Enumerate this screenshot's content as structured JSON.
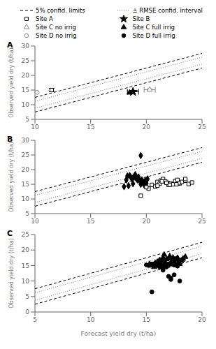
{
  "chart_data": [
    {
      "type": "scatter",
      "annotations": [
        "A"
      ],
      "ylabel": "Observed yield dry (t/ha)",
      "legend": "top",
      "grid": false,
      "xlim": [
        10,
        25
      ],
      "ylim": [
        5,
        30
      ],
      "xticks": [
        10,
        15,
        20,
        25
      ],
      "yticks": [
        5,
        10,
        15,
        20,
        25,
        30
      ],
      "series": [
        {
          "name": "5% confid. limits",
          "type": "line",
          "line_style": "dashed",
          "color": "black",
          "x": [
            10,
            25
          ],
          "values": [
            12.5,
            27.5
          ]
        },
        {
          "type": "line",
          "line_style": "dashed",
          "color": "black",
          "x": [
            10,
            25
          ],
          "values": [
            7.5,
            22.5
          ]
        },
        {
          "name": "± RMSE confid. interval",
          "type": "line",
          "line_style": "dotted",
          "color": "gray",
          "x": [
            10,
            25
          ],
          "values": [
            11.2,
            26.2
          ]
        },
        {
          "type": "line",
          "line_style": "dotted",
          "color": "gray",
          "x": [
            10,
            25
          ],
          "values": [
            8.8,
            23.8
          ]
        },
        {
          "name": "Site A",
          "type": "scatter",
          "marker": "square-open",
          "color": "black",
          "x": [
            11.5
          ],
          "values": [
            15.0
          ],
          "yerr": [
            0.6
          ]
        },
        {
          "name": "Site B",
          "type": "scatter",
          "marker": "star",
          "color": "black",
          "x": [
            18.8
          ],
          "values": [
            14.4
          ],
          "xerr": [
            0.5
          ],
          "yerr": [
            0.5
          ]
        },
        {
          "name": "Site C no irrig",
          "type": "scatter",
          "marker": "triangle-open",
          "color": "#888888",
          "x": [
            20.3
          ],
          "values": [
            15.1
          ],
          "xerr": [
            0.5
          ],
          "yerr": [
            0.3
          ]
        },
        {
          "name": "Site C full irrig",
          "type": "scatter",
          "marker": "triangle",
          "color": "black",
          "x": [
            18.5
          ],
          "values": [
            14.1
          ]
        },
        {
          "name": "Site D no irrig",
          "type": "scatter",
          "marker": "circle-open",
          "color": "#888888",
          "x": [
            10.2
          ],
          "values": [
            14.2
          ]
        },
        {
          "name": "Site D full irrig",
          "type": "scatter",
          "marker": "circle",
          "color": "black",
          "x": [],
          "values": []
        }
      ]
    },
    {
      "type": "scatter",
      "annotations": [
        "B"
      ],
      "ylabel": "Observed yield dry (t/ha)",
      "grid": false,
      "xlim": [
        10,
        25
      ],
      "ylim": [
        5,
        30
      ],
      "xticks": [
        10,
        15,
        20,
        25
      ],
      "yticks": [
        5,
        10,
        15,
        20,
        25,
        30
      ],
      "series": [
        {
          "type": "line",
          "line_style": "dashed",
          "color": "black",
          "x": [
            10,
            25
          ],
          "values": [
            12.5,
            27.5
          ]
        },
        {
          "type": "line",
          "line_style": "dashed",
          "color": "black",
          "x": [
            10,
            25
          ],
          "values": [
            7.5,
            22.5
          ]
        },
        {
          "type": "line",
          "line_style": "dotted",
          "color": "gray",
          "x": [
            10,
            25
          ],
          "values": [
            11.2,
            26.2
          ]
        },
        {
          "type": "line",
          "line_style": "dotted",
          "color": "gray",
          "x": [
            10,
            25
          ],
          "values": [
            8.8,
            23.8
          ]
        },
        {
          "type": "scatter",
          "marker": "diamond",
          "color": "black",
          "x": [
            18.0,
            18.2,
            18.3,
            18.5,
            18.6,
            18.7,
            18.8,
            18.9,
            19.0,
            19.1,
            19.2,
            19.3,
            19.4,
            19.5,
            19.6,
            19.7,
            19.8,
            19.9,
            20.0,
            20.1,
            18.4,
            18.8,
            19.2,
            19.5,
            19.8,
            19.5
          ],
          "values": [
            14.2,
            16.5,
            17.8,
            18.0,
            17.5,
            16.8,
            17.2,
            17.5,
            18.3,
            17.0,
            16.8,
            17.5,
            16.2,
            15.8,
            16.5,
            15.5,
            15.8,
            16.2,
            15.3,
            16.8,
            14.5,
            15.2,
            16.5,
            15.0,
            14.8,
            24.8
          ]
        },
        {
          "type": "scatter",
          "marker": "square-open",
          "color": "black",
          "x": [
            19.5,
            20.2,
            20.5,
            20.8,
            21.0,
            21.2,
            21.3,
            21.5,
            21.7,
            21.9,
            22.0,
            22.2,
            22.4,
            22.6,
            22.8,
            23.0,
            23.2,
            23.5,
            23.8,
            24.1,
            21.0,
            21.4,
            22.1,
            22.9,
            23.5,
            20.0,
            21.8,
            22.7
          ],
          "values": [
            11.1,
            13.5,
            14.8,
            14.2,
            15.8,
            15.2,
            16.3,
            16.8,
            16.0,
            15.5,
            14.8,
            15.2,
            15.0,
            16.1,
            16.5,
            15.3,
            15.8,
            16.2,
            15.1,
            15.6,
            14.5,
            16.0,
            14.8,
            15.4,
            16.8,
            14.0,
            15.5,
            15.0
          ]
        }
      ]
    },
    {
      "type": "scatter",
      "annotations": [
        "C"
      ],
      "ylabel": "Observed yield dry (t/ha)",
      "xlabel": "Forecast yield dry (t/ha)",
      "grid": false,
      "xlim": [
        5,
        20
      ],
      "ylim": [
        0,
        25
      ],
      "xticks": [
        5,
        10,
        15,
        20
      ],
      "yticks": [
        0,
        5,
        10,
        15,
        20,
        25
      ],
      "series": [
        {
          "type": "line",
          "line_style": "dashed",
          "color": "black",
          "x": [
            5,
            20
          ],
          "values": [
            7.5,
            22.5
          ]
        },
        {
          "type": "line",
          "line_style": "dashed",
          "color": "black",
          "x": [
            5,
            20
          ],
          "values": [
            2.5,
            17.5
          ]
        },
        {
          "type": "line",
          "line_style": "dotted",
          "color": "gray",
          "x": [
            5,
            20
          ],
          "values": [
            6.2,
            21.2
          ]
        },
        {
          "type": "line",
          "line_style": "dotted",
          "color": "gray",
          "x": [
            5,
            20
          ],
          "values": [
            3.8,
            18.8
          ]
        },
        {
          "type": "scatter",
          "marker": "triangle",
          "color": "black",
          "x": [
            15.3,
            15.5,
            15.7,
            15.8,
            16.0,
            16.1,
            16.2,
            16.4,
            16.5,
            16.6,
            16.7,
            16.8,
            17.0,
            17.1,
            17.2,
            17.3,
            17.4,
            17.5,
            17.6,
            17.7,
            17.8,
            17.9,
            18.0,
            18.1,
            18.2,
            18.3,
            18.5,
            15.5,
            16.3
          ],
          "values": [
            15.5,
            15.0,
            14.5,
            15.8,
            16.2,
            15.5,
            16.8,
            16.5,
            17.5,
            18.5,
            16.0,
            17.0,
            17.2,
            18.0,
            15.8,
            16.5,
            17.5,
            16.2,
            17.0,
            16.8,
            17.5,
            16.0,
            15.5,
            16.5,
            16.8,
            17.2,
            17.8,
            15.0,
            15.3
          ]
        },
        {
          "type": "scatter",
          "marker": "circle",
          "color": "black",
          "x": [
            15.0,
            15.2,
            15.5,
            15.8,
            16.0,
            16.2,
            16.5,
            16.5,
            16.8,
            17.0,
            17.0,
            17.2,
            17.3,
            17.5,
            17.5,
            17.8,
            18.0,
            16.3,
            15.5,
            17.2,
            16.8,
            17.5,
            17.0,
            16.5
          ],
          "values": [
            15.2,
            15.0,
            15.5,
            15.8,
            15.0,
            14.5,
            13.5,
            15.2,
            14.8,
            11.5,
            15.0,
            10.5,
            15.5,
            12.0,
            15.2,
            14.8,
            10.0,
            15.0,
            6.5,
            11.0,
            14.5,
            15.2,
            15.5,
            14.2
          ]
        }
      ]
    }
  ]
}
